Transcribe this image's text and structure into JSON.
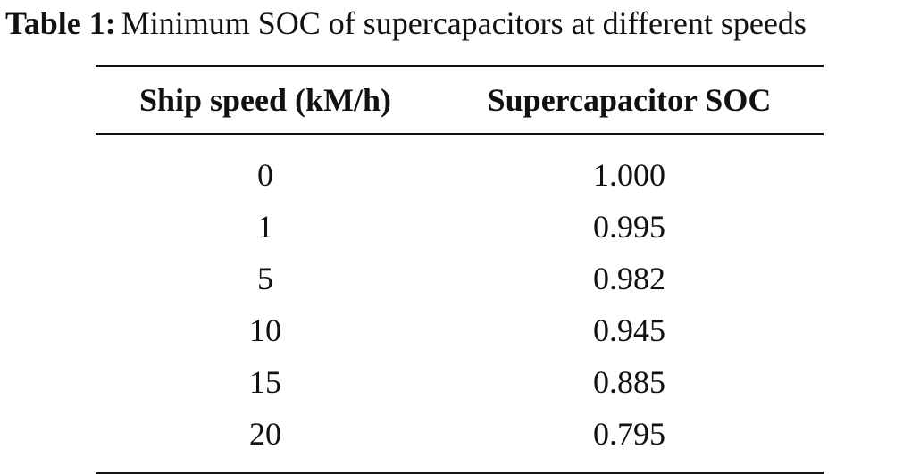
{
  "caption": {
    "label": "Table 1:",
    "text": "Minimum SOC of supercapacitors at different speeds"
  },
  "table": {
    "headers": {
      "speed": "Ship speed (kM/h)",
      "soc": "Supercapacitor SOC"
    },
    "rows": [
      {
        "speed": "0",
        "soc": "1.000"
      },
      {
        "speed": "1",
        "soc": "0.995"
      },
      {
        "speed": "5",
        "soc": "0.982"
      },
      {
        "speed": "10",
        "soc": "0.945"
      },
      {
        "speed": "15",
        "soc": "0.885"
      },
      {
        "speed": "20",
        "soc": "0.795"
      }
    ]
  }
}
